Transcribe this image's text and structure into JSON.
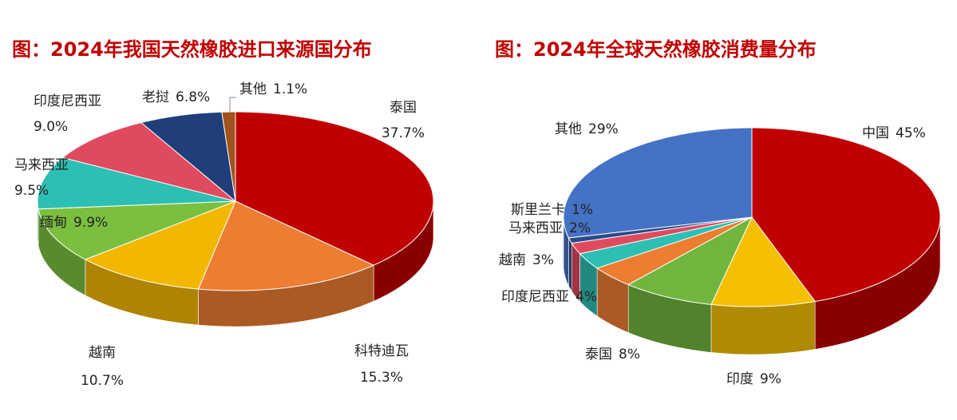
{
  "chart_data": [
    {
      "type": "pie3d",
      "title": "图：2024年我国天然橡胶进口来源国分布",
      "categories": [
        "泰国",
        "科特迪瓦",
        "越南",
        "缅甸",
        "马来西亚",
        "印度尼西亚",
        "老挝",
        "其他"
      ],
      "values": [
        37.7,
        15.3,
        10.7,
        9.9,
        9.5,
        9.0,
        6.8,
        1.1
      ],
      "value_labels": [
        "37.7%",
        "15.3%",
        "10.7%",
        "9.9%",
        "9.5%",
        "9.0%",
        "6.8%",
        "1.1%"
      ],
      "colors": [
        "#c00000",
        "#ed7d31",
        "#f2b800",
        "#7bbf3f",
        "#2dbfb3",
        "#e04a5f",
        "#1f3e7a",
        "#a0521c"
      ]
    },
    {
      "type": "pie3d",
      "title": "图：2024年全球天然橡胶消费量分布",
      "categories": [
        "中国",
        "印度",
        "泰国",
        "印度尼西亚",
        "越南",
        "马来西亚",
        "斯里兰卡",
        "其他"
      ],
      "values": [
        45,
        9,
        8,
        4,
        3,
        2,
        1,
        29
      ],
      "value_labels": [
        "45%",
        "9%",
        "8%",
        "4%",
        "3%",
        "2%",
        "1%",
        "29%"
      ],
      "colors": [
        "#c00000",
        "#f5c000",
        "#70b53d",
        "#ed7d31",
        "#2dbfb3",
        "#e04a5f",
        "#2a4a8a",
        "#4472c4"
      ]
    }
  ]
}
